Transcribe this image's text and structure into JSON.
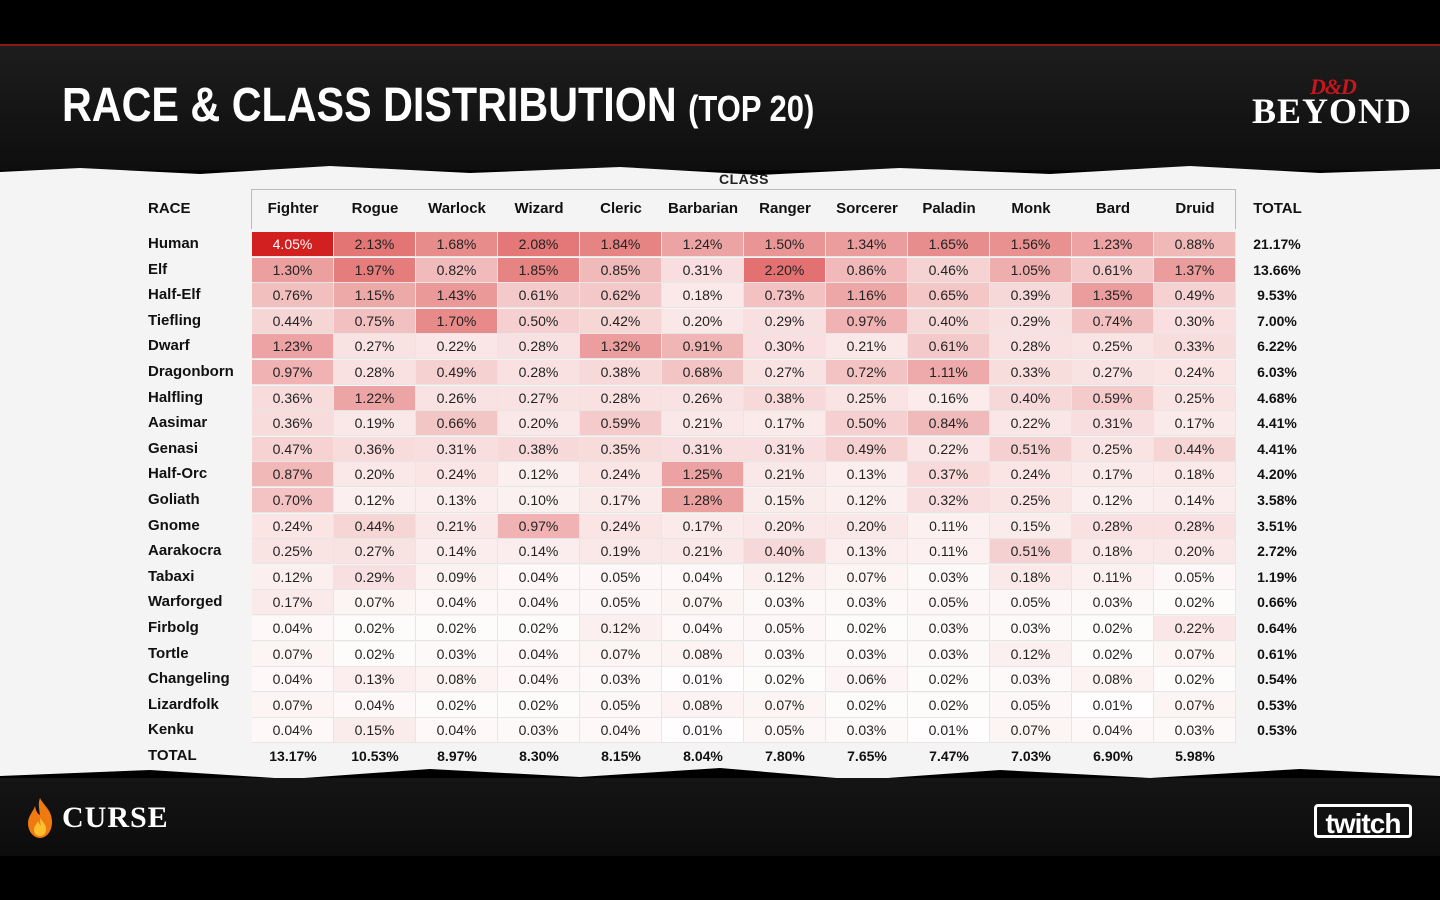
{
  "header": {
    "title": "RACE & CLASS DISTRIBUTION",
    "title_suffix": "(TOP 20)",
    "logo_top": "D&D",
    "logo_main": "BEYOND"
  },
  "footer": {
    "left_logo": "CURSE",
    "right_logo": "twitch"
  },
  "colors": {
    "accent_red": "#d21f1f",
    "background": "#000000",
    "paper": "#f4f4f4"
  },
  "chart_data": {
    "type": "heatmap",
    "title": "RACE & CLASS DISTRIBUTION (TOP 20)",
    "column_group_label": "CLASS",
    "row_header": "RACE",
    "total_label": "TOTAL",
    "classes": [
      "Fighter",
      "Rogue",
      "Warlock",
      "Wizard",
      "Cleric",
      "Barbarian",
      "Ranger",
      "Sorcerer",
      "Paladin",
      "Monk",
      "Bard",
      "Druid"
    ],
    "races": [
      "Human",
      "Elf",
      "Half-Elf",
      "Tiefling",
      "Dwarf",
      "Dragonborn",
      "Halfling",
      "Aasimar",
      "Genasi",
      "Half-Orc",
      "Goliath",
      "Gnome",
      "Aarakocra",
      "Tabaxi",
      "Warforged",
      "Firbolg",
      "Tortle",
      "Changeling",
      "Lizardfolk",
      "Kenku"
    ],
    "values": [
      [
        "4.05%",
        "2.13%",
        "1.68%",
        "2.08%",
        "1.84%",
        "1.24%",
        "1.50%",
        "1.34%",
        "1.65%",
        "1.56%",
        "1.23%",
        "0.88%"
      ],
      [
        "1.30%",
        "1.97%",
        "0.82%",
        "1.85%",
        "0.85%",
        "0.31%",
        "2.20%",
        "0.86%",
        "0.46%",
        "1.05%",
        "0.61%",
        "1.37%"
      ],
      [
        "0.76%",
        "1.15%",
        "1.43%",
        "0.61%",
        "0.62%",
        "0.18%",
        "0.73%",
        "1.16%",
        "0.65%",
        "0.39%",
        "1.35%",
        "0.49%"
      ],
      [
        "0.44%",
        "0.75%",
        "1.70%",
        "0.50%",
        "0.42%",
        "0.20%",
        "0.29%",
        "0.97%",
        "0.40%",
        "0.29%",
        "0.74%",
        "0.30%"
      ],
      [
        "1.23%",
        "0.27%",
        "0.22%",
        "0.28%",
        "1.32%",
        "0.91%",
        "0.30%",
        "0.21%",
        "0.61%",
        "0.28%",
        "0.25%",
        "0.33%"
      ],
      [
        "0.97%",
        "0.28%",
        "0.49%",
        "0.28%",
        "0.38%",
        "0.68%",
        "0.27%",
        "0.72%",
        "1.11%",
        "0.33%",
        "0.27%",
        "0.24%"
      ],
      [
        "0.36%",
        "1.22%",
        "0.26%",
        "0.27%",
        "0.28%",
        "0.26%",
        "0.38%",
        "0.25%",
        "0.16%",
        "0.40%",
        "0.59%",
        "0.25%"
      ],
      [
        "0.36%",
        "0.19%",
        "0.66%",
        "0.20%",
        "0.59%",
        "0.21%",
        "0.17%",
        "0.50%",
        "0.84%",
        "0.22%",
        "0.31%",
        "0.17%"
      ],
      [
        "0.47%",
        "0.36%",
        "0.31%",
        "0.38%",
        "0.35%",
        "0.31%",
        "0.31%",
        "0.49%",
        "0.22%",
        "0.51%",
        "0.25%",
        "0.44%"
      ],
      [
        "0.87%",
        "0.20%",
        "0.24%",
        "0.12%",
        "0.24%",
        "1.25%",
        "0.21%",
        "0.13%",
        "0.37%",
        "0.24%",
        "0.17%",
        "0.18%"
      ],
      [
        "0.70%",
        "0.12%",
        "0.13%",
        "0.10%",
        "0.17%",
        "1.28%",
        "0.15%",
        "0.12%",
        "0.32%",
        "0.25%",
        "0.12%",
        "0.14%"
      ],
      [
        "0.24%",
        "0.44%",
        "0.21%",
        "0.97%",
        "0.24%",
        "0.17%",
        "0.20%",
        "0.20%",
        "0.11%",
        "0.15%",
        "0.28%",
        "0.28%"
      ],
      [
        "0.25%",
        "0.27%",
        "0.14%",
        "0.14%",
        "0.19%",
        "0.21%",
        "0.40%",
        "0.13%",
        "0.11%",
        "0.51%",
        "0.18%",
        "0.20%"
      ],
      [
        "0.12%",
        "0.29%",
        "0.09%",
        "0.04%",
        "0.05%",
        "0.04%",
        "0.12%",
        "0.07%",
        "0.03%",
        "0.18%",
        "0.11%",
        "0.05%"
      ],
      [
        "0.17%",
        "0.07%",
        "0.04%",
        "0.04%",
        "0.05%",
        "0.07%",
        "0.03%",
        "0.03%",
        "0.05%",
        "0.05%",
        "0.03%",
        "0.02%"
      ],
      [
        "0.04%",
        "0.02%",
        "0.02%",
        "0.02%",
        "0.12%",
        "0.04%",
        "0.05%",
        "0.02%",
        "0.03%",
        "0.03%",
        "0.02%",
        "0.22%"
      ],
      [
        "0.07%",
        "0.02%",
        "0.03%",
        "0.04%",
        "0.07%",
        "0.08%",
        "0.03%",
        "0.03%",
        "0.03%",
        "0.12%",
        "0.02%",
        "0.07%"
      ],
      [
        "0.04%",
        "0.13%",
        "0.08%",
        "0.04%",
        "0.03%",
        "0.01%",
        "0.02%",
        "0.06%",
        "0.02%",
        "0.03%",
        "0.08%",
        "0.02%"
      ],
      [
        "0.07%",
        "0.04%",
        "0.02%",
        "0.02%",
        "0.05%",
        "0.08%",
        "0.07%",
        "0.02%",
        "0.02%",
        "0.05%",
        "0.01%",
        "0.07%"
      ],
      [
        "0.04%",
        "0.15%",
        "0.04%",
        "0.03%",
        "0.04%",
        "0.01%",
        "0.05%",
        "0.03%",
        "0.01%",
        "0.07%",
        "0.04%",
        "0.03%"
      ]
    ],
    "row_totals": [
      "21.17%",
      "13.66%",
      "9.53%",
      "7.00%",
      "6.22%",
      "6.03%",
      "4.68%",
      "4.41%",
      "4.41%",
      "4.20%",
      "3.58%",
      "3.51%",
      "2.72%",
      "1.19%",
      "0.66%",
      "0.64%",
      "0.61%",
      "0.54%",
      "0.53%",
      "0.53%"
    ],
    "column_totals": [
      "13.17%",
      "10.53%",
      "8.97%",
      "8.30%",
      "8.15%",
      "8.04%",
      "7.80%",
      "7.65%",
      "7.47%",
      "7.03%",
      "6.90%",
      "5.98%"
    ],
    "color_scale": {
      "low": "#ffffff",
      "high": "#d21f1f"
    }
  }
}
